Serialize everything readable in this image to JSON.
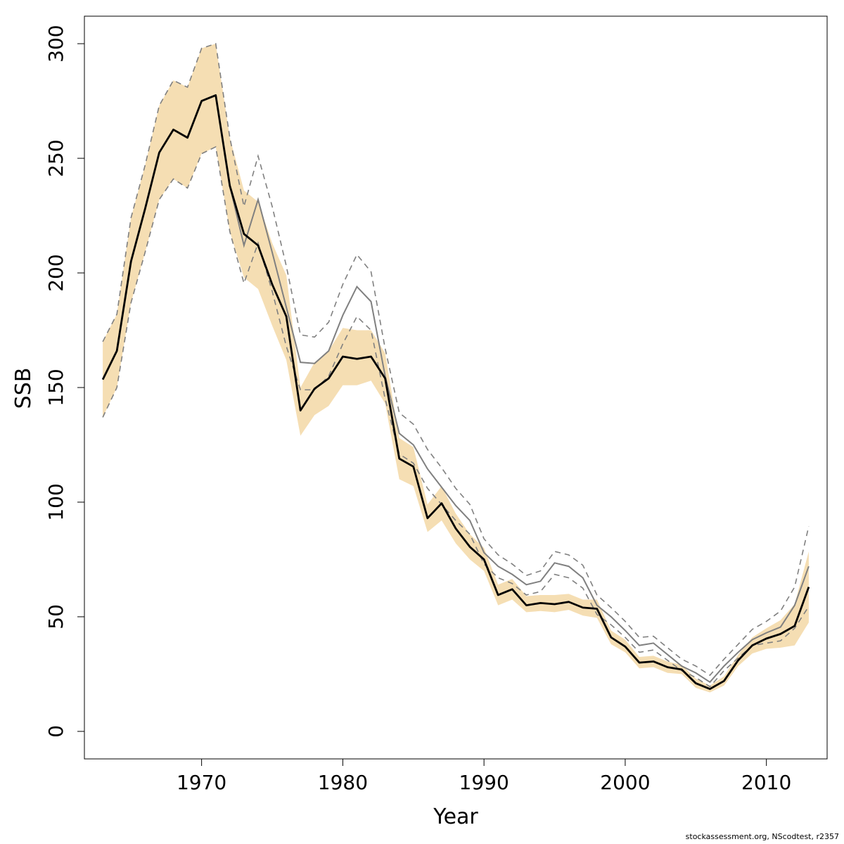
{
  "chart_data": {
    "type": "line",
    "xlabel": "Year",
    "ylabel": "SSB",
    "credit": "stockassessment.org, NScodtest, r2357",
    "xlim": [
      1961.7,
      2014.3
    ],
    "ylim": [
      -12,
      312
    ],
    "x_ticks": [
      1970,
      1980,
      1990,
      2000,
      2010
    ],
    "y_ticks": [
      0,
      50,
      100,
      150,
      200,
      250,
      300
    ],
    "grid": false,
    "legend": "none",
    "colors": {
      "band": "#f5deb3",
      "current": "#000000",
      "previous": "#808080"
    },
    "x": [
      1963,
      1964,
      1965,
      1966,
      1967,
      1968,
      1969,
      1970,
      1971,
      1972,
      1973,
      1974,
      1975,
      1976,
      1977,
      1978,
      1979,
      1980,
      1981,
      1982,
      1983,
      1984,
      1985,
      1986,
      1987,
      1988,
      1989,
      1990,
      1991,
      1992,
      1993,
      1994,
      1995,
      1996,
      1997,
      1998,
      1999,
      2000,
      2001,
      2002,
      2003,
      2004,
      2005,
      2006,
      2007,
      2008,
      2009,
      2010,
      2011,
      2012,
      2013
    ],
    "series": [
      {
        "role": "estimate",
        "values": [
          153.5,
          166,
          205,
          228,
          252.5,
          262.5,
          259,
          275,
          277.5,
          238,
          217,
          212,
          195,
          181,
          140,
          149.5,
          154,
          163.5,
          162.5,
          163.5,
          154,
          119,
          115.5,
          93,
          99.5,
          88.5,
          80.5,
          75,
          59.5,
          62,
          55,
          56,
          55.5,
          56.5,
          54,
          53.5,
          41,
          37,
          30,
          30.5,
          28,
          27,
          21,
          18.5,
          22,
          31,
          37.5,
          40.5,
          42.5,
          46,
          63
        ]
      },
      {
        "role": "confidence-band-lower",
        "values": [
          137,
          150,
          187,
          209,
          232,
          241,
          237,
          252,
          255,
          218,
          198,
          193,
          177,
          162,
          129,
          138,
          142,
          151,
          151,
          153,
          143,
          110,
          107,
          87,
          92,
          82,
          75,
          70,
          55,
          57.5,
          52,
          52.5,
          52,
          53,
          50.5,
          49.5,
          38,
          34.5,
          27.5,
          28,
          25.5,
          25,
          19,
          17,
          20,
          28.5,
          34,
          36,
          36.5,
          37.5,
          47.5
        ]
      },
      {
        "role": "confidence-band-upper",
        "values": [
          170,
          182,
          224,
          247,
          273,
          284,
          281,
          298,
          300,
          259,
          236,
          231,
          213,
          199,
          150,
          161,
          166,
          176,
          175,
          175,
          165,
          128,
          124,
          99,
          107,
          95,
          86,
          80,
          64,
          66.5,
          59,
          59.5,
          59.5,
          60,
          57.5,
          57.5,
          44,
          40,
          32.5,
          33,
          30.5,
          29,
          23,
          20,
          24,
          33.5,
          41,
          45,
          48.5,
          55.5,
          78.5
        ]
      },
      {
        "role": "previous-estimate",
        "values": [
          153.5,
          166,
          205,
          228,
          252.5,
          262.5,
          259,
          275,
          277.5,
          238,
          212,
          232,
          209,
          185,
          161,
          160.5,
          166,
          181.5,
          194,
          187.5,
          155,
          130,
          125,
          114.5,
          106.5,
          98.5,
          92,
          78,
          72,
          68.5,
          64,
          65.5,
          73.5,
          72,
          67,
          55,
          50,
          44,
          37.5,
          38.5,
          33.5,
          28.5,
          25.5,
          21.5,
          28.5,
          34.5,
          40,
          43,
          45.5,
          55,
          72
        ]
      },
      {
        "role": "previous-lower",
        "values": [
          137,
          150,
          187,
          209,
          232,
          241,
          237,
          252,
          255,
          218,
          195.5,
          213,
          192,
          168,
          149,
          149,
          155,
          169,
          181,
          175,
          145,
          121,
          117,
          106,
          99,
          92,
          86,
          73,
          67,
          64.5,
          59.5,
          61,
          68.5,
          67,
          62.5,
          51,
          46.5,
          41,
          34.5,
          35.5,
          31,
          26.5,
          23.5,
          19.5,
          26.5,
          32,
          37.5,
          38.5,
          39.5,
          45,
          54.5
        ]
      },
      {
        "role": "previous-upper",
        "values": [
          170,
          182,
          224,
          247,
          273,
          284,
          281,
          298,
          300,
          259,
          229,
          251,
          229,
          203,
          173,
          172,
          178.5,
          195,
          208,
          200.5,
          167,
          139,
          134,
          123,
          115,
          106,
          99,
          84,
          77,
          73,
          68,
          70,
          78.5,
          77,
          72.5,
          59.5,
          54,
          48,
          41,
          41.5,
          36.5,
          31.5,
          28.5,
          24.5,
          31.5,
          38,
          44.5,
          48,
          52.5,
          63,
          89.5
        ]
      }
    ]
  }
}
